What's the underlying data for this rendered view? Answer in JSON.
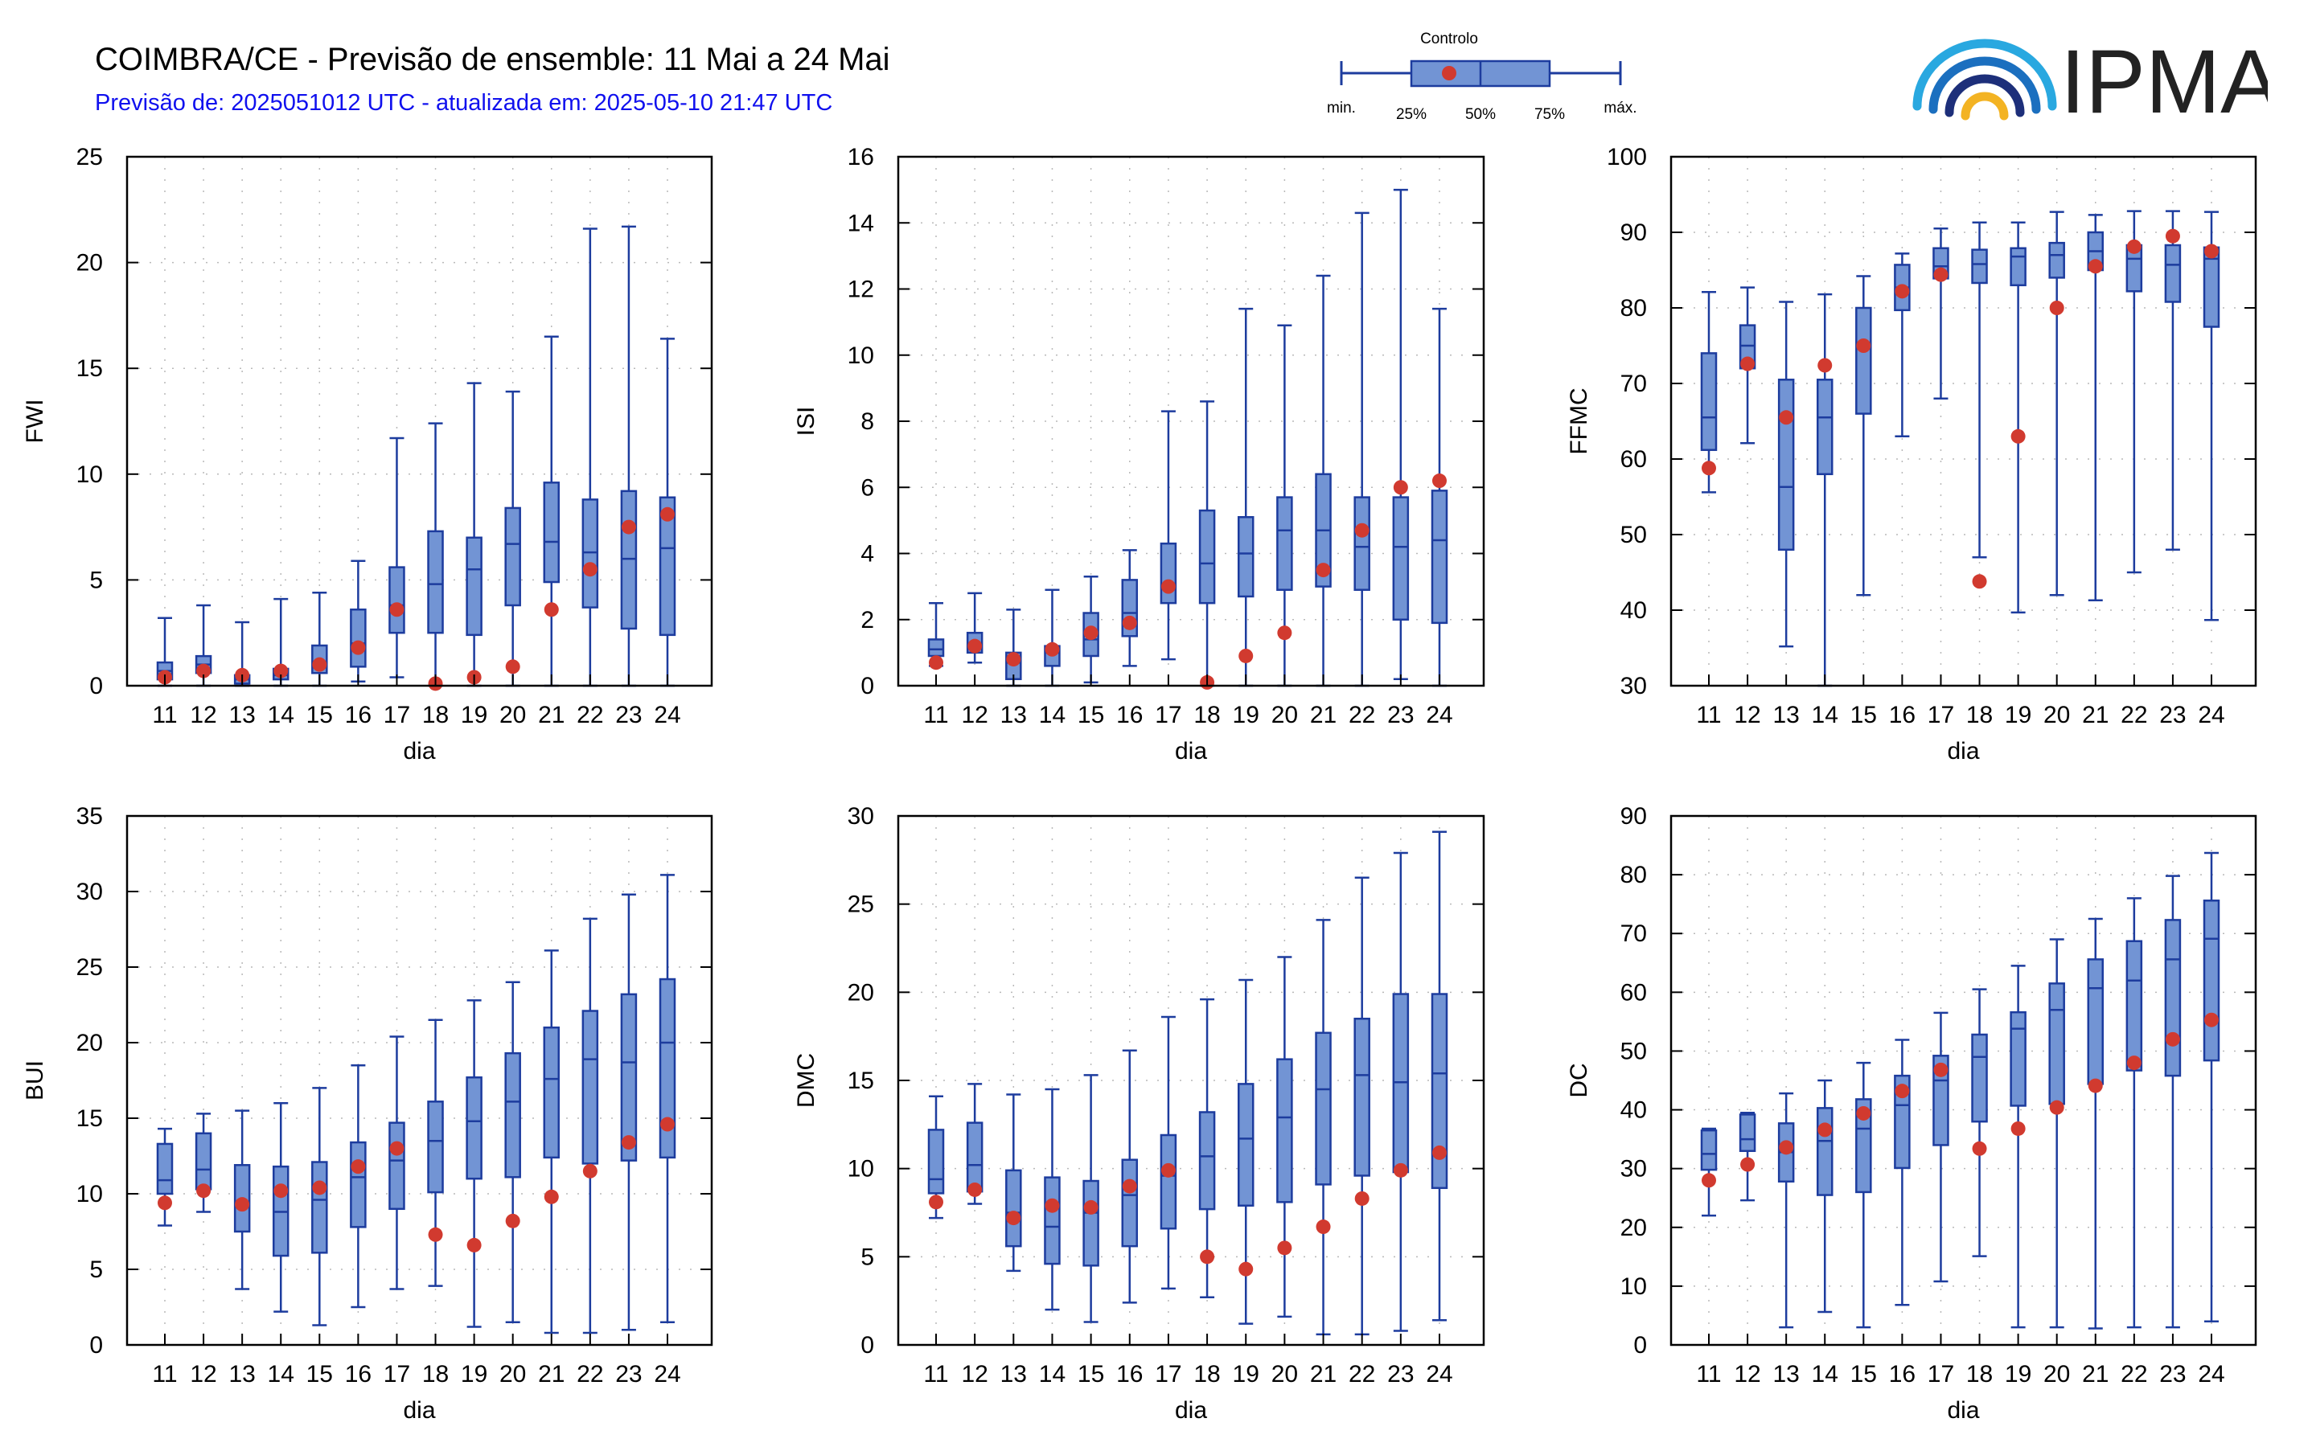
{
  "header": {
    "title": "COIMBRA/CE - Previsão de ensemble: 11 Mai a 24 Mai",
    "subtitle": "Previsão de: 2025051012 UTC - atualizada em: 2025-05-10 21:47 UTC"
  },
  "legend": {
    "control_label": "Controlo",
    "min_label": "min.",
    "q1_label": "25%",
    "median_label": "50%",
    "q3_label": "75%",
    "max_label": "máx."
  },
  "logo": {
    "text": "IPMA"
  },
  "colors": {
    "box_fill": "#7294d4",
    "box_stroke": "#1d3c9e",
    "control": "#d13a2f",
    "grid": "#b9b9b9"
  },
  "chart_data": [
    {
      "type": "boxplot",
      "ylabel": "FWI",
      "xlabel": "dia",
      "ylim": [
        0,
        25
      ],
      "yticks": [
        0,
        5,
        10,
        15,
        20,
        25
      ],
      "categories": [
        "11",
        "12",
        "13",
        "14",
        "15",
        "16",
        "17",
        "18",
        "19",
        "20",
        "21",
        "22",
        "23",
        "24"
      ],
      "min": [
        0,
        0,
        0,
        0,
        0,
        0.2,
        0.4,
        0,
        0,
        0,
        0,
        0,
        0,
        0
      ],
      "q1": [
        0.3,
        0.6,
        0.1,
        0.3,
        0.6,
        0.9,
        2.5,
        2.5,
        2.4,
        3.8,
        4.9,
        3.7,
        2.7,
        2.4
      ],
      "median": [
        0.7,
        1.0,
        0.3,
        0.5,
        1.1,
        2.0,
        3.8,
        4.8,
        5.5,
        6.7,
        6.8,
        6.3,
        6.0,
        6.5
      ],
      "q3": [
        1.1,
        1.4,
        0.5,
        0.8,
        1.9,
        3.6,
        5.6,
        7.3,
        7.0,
        8.4,
        9.6,
        8.8,
        9.2,
        8.9
      ],
      "max": [
        3.2,
        3.8,
        3.0,
        4.1,
        4.4,
        5.9,
        11.7,
        12.4,
        14.3,
        13.9,
        16.5,
        21.6,
        21.7,
        16.4
      ],
      "control": [
        0.4,
        0.7,
        0.5,
        0.7,
        1.0,
        1.8,
        3.6,
        0.1,
        0.4,
        0.9,
        3.6,
        5.5,
        7.5,
        8.1
      ]
    },
    {
      "type": "boxplot",
      "ylabel": "ISI",
      "xlabel": "dia",
      "ylim": [
        0,
        16
      ],
      "yticks": [
        0,
        2,
        4,
        6,
        8,
        10,
        12,
        14,
        16
      ],
      "categories": [
        "11",
        "12",
        "13",
        "14",
        "15",
        "16",
        "17",
        "18",
        "19",
        "20",
        "21",
        "22",
        "23",
        "24"
      ],
      "min": [
        0.6,
        0.7,
        0,
        0,
        0.1,
        0.6,
        0.8,
        0,
        0,
        0,
        0,
        0,
        0.2,
        0
      ],
      "q1": [
        0.9,
        1.0,
        0.2,
        0.6,
        0.9,
        1.5,
        2.5,
        2.5,
        2.7,
        2.9,
        3.0,
        2.9,
        2.0,
        1.9
      ],
      "median": [
        1.1,
        1.2,
        0.7,
        1.0,
        1.4,
        2.2,
        3.0,
        3.7,
        4.0,
        4.7,
        4.7,
        4.2,
        4.2,
        4.4
      ],
      "q3": [
        1.4,
        1.6,
        1.0,
        1.2,
        2.2,
        3.2,
        4.3,
        5.3,
        5.1,
        5.7,
        6.4,
        5.7,
        5.7,
        5.9
      ],
      "max": [
        2.5,
        2.8,
        2.3,
        2.9,
        3.3,
        4.1,
        8.3,
        8.6,
        11.4,
        10.9,
        12.4,
        14.3,
        15.0,
        11.4
      ],
      "control": [
        0.7,
        1.2,
        0.8,
        1.1,
        1.6,
        1.9,
        3.0,
        0.1,
        0.9,
        1.6,
        3.5,
        4.7,
        6.0,
        6.2
      ]
    },
    {
      "type": "boxplot",
      "ylabel": "FFMC",
      "xlabel": "dia",
      "ylim": [
        30,
        100
      ],
      "yticks": [
        30,
        40,
        50,
        60,
        70,
        80,
        90,
        100
      ],
      "categories": [
        "11",
        "12",
        "13",
        "14",
        "15",
        "16",
        "17",
        "18",
        "19",
        "20",
        "21",
        "22",
        "23",
        "24"
      ],
      "min": [
        55.6,
        62.1,
        35.2,
        30.0,
        42.0,
        63.0,
        68.0,
        47.0,
        39.7,
        42.0,
        41.3,
        45.0,
        48.0,
        38.7
      ],
      "q1": [
        61.2,
        72.0,
        48.0,
        58.0,
        66.0,
        79.7,
        83.9,
        83.3,
        83.0,
        84.0,
        85.0,
        82.2,
        80.8,
        77.5
      ],
      "median": [
        65.5,
        75.0,
        56.3,
        65.5,
        75.0,
        82.7,
        85.5,
        85.8,
        86.8,
        87.0,
        87.5,
        86.5,
        85.7,
        86.5
      ],
      "q3": [
        74.0,
        77.7,
        70.5,
        70.5,
        80.0,
        85.7,
        87.9,
        87.7,
        87.9,
        88.6,
        90.0,
        88.3,
        88.3,
        88.0
      ],
      "max": [
        82.1,
        82.7,
        80.8,
        81.8,
        84.2,
        87.2,
        90.5,
        91.3,
        91.3,
        92.7,
        92.3,
        92.8,
        92.8,
        92.7
      ],
      "control": [
        58.8,
        72.6,
        65.5,
        72.4,
        75.0,
        82.2,
        84.4,
        43.8,
        63.0,
        80.0,
        85.5,
        88.1,
        89.5,
        87.5
      ]
    },
    {
      "type": "boxplot",
      "ylabel": "BUI",
      "xlabel": "dia",
      "ylim": [
        0,
        35
      ],
      "yticks": [
        0,
        5,
        10,
        15,
        20,
        25,
        30,
        35
      ],
      "categories": [
        "11",
        "12",
        "13",
        "14",
        "15",
        "16",
        "17",
        "18",
        "19",
        "20",
        "21",
        "22",
        "23",
        "24"
      ],
      "min": [
        7.9,
        8.8,
        3.7,
        2.2,
        1.3,
        2.5,
        3.7,
        3.9,
        1.2,
        1.5,
        0.8,
        0.8,
        1.0,
        1.5
      ],
      "q1": [
        10.0,
        10.3,
        7.5,
        5.9,
        6.1,
        7.8,
        9.0,
        10.1,
        11.0,
        11.1,
        12.4,
        12.0,
        12.2,
        12.4
      ],
      "median": [
        10.9,
        11.6,
        9.2,
        8.8,
        9.6,
        11.1,
        12.2,
        13.5,
        14.8,
        16.1,
        17.6,
        18.9,
        18.7,
        20.0
      ],
      "q3": [
        13.3,
        14.0,
        11.9,
        11.8,
        12.1,
        13.4,
        14.7,
        16.1,
        17.7,
        19.3,
        21.0,
        22.1,
        23.2,
        24.2
      ],
      "max": [
        14.3,
        15.3,
        15.5,
        16.0,
        17.0,
        18.5,
        20.4,
        21.5,
        22.8,
        24.0,
        26.1,
        28.2,
        29.8,
        31.1
      ],
      "control": [
        9.4,
        10.2,
        9.3,
        10.2,
        10.4,
        11.8,
        13.0,
        7.3,
        6.6,
        8.2,
        9.8,
        11.5,
        13.4,
        14.6
      ]
    },
    {
      "type": "boxplot",
      "ylabel": "DMC",
      "xlabel": "dia",
      "ylim": [
        0,
        30
      ],
      "yticks": [
        0,
        5,
        10,
        15,
        20,
        25,
        30
      ],
      "categories": [
        "11",
        "12",
        "13",
        "14",
        "15",
        "16",
        "17",
        "18",
        "19",
        "20",
        "21",
        "22",
        "23",
        "24"
      ],
      "min": [
        7.2,
        8.0,
        4.2,
        2.0,
        1.3,
        2.4,
        3.2,
        2.7,
        1.2,
        1.6,
        0.6,
        0.6,
        0.8,
        1.4
      ],
      "q1": [
        8.6,
        8.7,
        5.6,
        4.6,
        4.5,
        5.6,
        6.6,
        7.7,
        7.9,
        8.1,
        9.1,
        9.6,
        9.8,
        8.9
      ],
      "median": [
        9.4,
        10.2,
        7.5,
        6.7,
        7.5,
        8.5,
        9.6,
        10.7,
        11.7,
        12.9,
        14.5,
        15.3,
        14.9,
        15.4
      ],
      "q3": [
        12.2,
        12.6,
        9.9,
        9.5,
        9.3,
        10.5,
        11.9,
        13.2,
        14.8,
        16.2,
        17.7,
        18.5,
        19.9,
        19.9
      ],
      "max": [
        14.1,
        14.8,
        14.2,
        14.5,
        15.3,
        16.7,
        18.6,
        19.6,
        20.7,
        22.0,
        24.1,
        26.5,
        27.9,
        29.1
      ],
      "control": [
        8.1,
        8.8,
        7.2,
        7.9,
        7.8,
        9.0,
        9.9,
        5.0,
        4.3,
        5.5,
        6.7,
        8.3,
        9.9,
        10.9
      ]
    },
    {
      "type": "boxplot",
      "ylabel": "DC",
      "xlabel": "dia",
      "ylim": [
        0,
        90
      ],
      "yticks": [
        0,
        10,
        20,
        30,
        40,
        50,
        60,
        70,
        80,
        90
      ],
      "categories": [
        "11",
        "12",
        "13",
        "14",
        "15",
        "16",
        "17",
        "18",
        "19",
        "20",
        "21",
        "22",
        "23",
        "24"
      ],
      "min": [
        22.0,
        24.6,
        3.0,
        5.6,
        3.0,
        6.8,
        10.8,
        15.1,
        3.0,
        3.0,
        2.8,
        3.0,
        3.0,
        4.0
      ],
      "q1": [
        29.8,
        33.0,
        27.8,
        25.5,
        26.0,
        30.1,
        34.0,
        38.0,
        40.7,
        41.0,
        44.4,
        46.7,
        45.8,
        48.4
      ],
      "median": [
        32.5,
        35.0,
        32.8,
        34.7,
        36.8,
        40.8,
        45.0,
        49.0,
        53.8,
        57.0,
        60.7,
        62.0,
        65.6,
        69.1
      ],
      "q3": [
        36.5,
        39.2,
        37.7,
        40.3,
        41.8,
        45.8,
        49.2,
        52.8,
        56.6,
        61.5,
        65.6,
        68.7,
        72.3,
        75.6
      ],
      "max": [
        36.8,
        39.5,
        42.8,
        45.0,
        48.0,
        51.9,
        56.5,
        60.5,
        64.5,
        69.0,
        72.5,
        76.0,
        79.8,
        83.7
      ],
      "control": [
        28.0,
        30.7,
        33.6,
        36.6,
        39.4,
        43.2,
        46.8,
        33.4,
        36.8,
        40.4,
        44.1,
        48.0,
        52.0,
        55.3
      ]
    }
  ]
}
